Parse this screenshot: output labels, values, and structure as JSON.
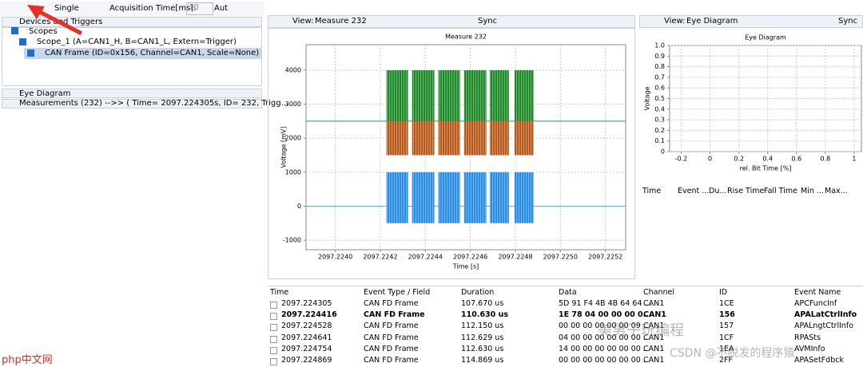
{
  "toolbar": {
    "mode": "Single",
    "acq_label": "Acquisition Time[ms]:",
    "acq_value": "10",
    "auto": "Aut"
  },
  "tree": {
    "header": "Devices and Triggers",
    "scopes": "Scopes",
    "scope": "Scope_1 (A=CAN1_H, B=CAN1_L, Extern=Trigger)",
    "frame": "CAN Frame (ID=0x156, Channel=CAN1, Scale=None)"
  },
  "sections": {
    "eye": "Eye Diagram",
    "measurements": "Measurements (232)  -->> ( Time= 2097.224305s, ID= 232, Trigg..."
  },
  "middle_view": {
    "view_label": "View:",
    "view": "Measure 232",
    "sync": "Sync"
  },
  "right_view": {
    "view_label": "View:",
    "view": "Eye Diagram",
    "sync": "Sync"
  },
  "chart_data": [
    {
      "type": "scope",
      "title": "Measure 232",
      "x_label": "Time [s]",
      "y_label": "Voltage [mV]",
      "xlim": [
        2097.22387,
        2097.22529
      ],
      "ylim": [
        -1280,
        4750
      ],
      "xticks": [
        {
          "value": 2097.224,
          "label": "2097.2240"
        },
        {
          "value": 2097.2242,
          "label": "2097.2242"
        },
        {
          "value": 2097.2244,
          "label": "2097.2244"
        },
        {
          "value": 2097.2246,
          "label": "2097.2246"
        },
        {
          "value": 2097.2248,
          "label": "2097.2248"
        },
        {
          "value": 2097.225,
          "label": "2097.2250"
        },
        {
          "value": 2097.2252,
          "label": "2097.2252"
        }
      ],
      "yticks": [
        -1000,
        0,
        1000,
        2000,
        3000,
        4000
      ],
      "grid": true,
      "bursts": [
        [
          2097.224227,
          2097.224323
        ],
        [
          2097.224341,
          2097.22444
        ],
        [
          2097.224458,
          2097.224554
        ],
        [
          2097.224572,
          2097.224671
        ],
        [
          2097.224686,
          2097.224771
        ],
        [
          2097.224796,
          2097.224881
        ]
      ],
      "bands": [
        {
          "color": "#1f8a2a",
          "range": [
            2500,
            4000
          ]
        },
        {
          "color": "#b85a1c",
          "range": [
            1500,
            2500
          ]
        },
        {
          "color": "#2a8ee8",
          "range": [
            -500,
            1000
          ]
        }
      ],
      "levels": [
        {
          "value": 2500,
          "color": "#2e9a3a"
        },
        {
          "value": 0,
          "color": "#4fb4d8"
        }
      ]
    },
    {
      "type": "eye",
      "title": "Eye Diagram",
      "x_label": "rel. Bit Time [%]",
      "y_label": "Voltage",
      "xlim": [
        -0.28,
        1.05
      ],
      "ylim": [
        0,
        1
      ],
      "xticks": [
        -0.2,
        0,
        0.2,
        0.4,
        0.6,
        0.8,
        1.0
      ],
      "yticks": [
        0,
        0.1,
        0.2,
        0.3,
        0.4,
        0.5,
        0.6,
        0.7,
        0.8,
        0.9,
        {
          "value": 1,
          "label": "1.0"
        }
      ],
      "grid": true
    }
  ],
  "eye_table": {
    "columns": [
      "Time",
      "Event ...",
      "Du...",
      "Rise Time",
      "Fall Time",
      "Min ...",
      "Max..."
    ]
  },
  "table": {
    "columns": [
      "Time",
      "Event Type / Field",
      "Duration",
      "Data",
      "Channel",
      "ID",
      "Event Name"
    ],
    "rows": [
      [
        "2097.224305",
        "CAN FD Frame",
        "107.670 us",
        "5D 91 F4 4B 4B 64 64 ...",
        "CAN1",
        "1CE",
        "APCFuncInf"
      ],
      [
        "2097.224416",
        "CAN FD Frame",
        "110.630 us",
        "1E 78 04 00 00 00 0...",
        "CAN1",
        "156",
        "APALatCtrlInfo"
      ],
      [
        "2097.224528",
        "CAN FD Frame",
        "112.150 us",
        "00 00 00 00 00 00 09 ...",
        "CAN1",
        "157",
        "APALngtCtrlInfo"
      ],
      [
        "2097.224641",
        "CAN FD Frame",
        "112.629 us",
        "04 00 00 00 00 00 00 ...",
        "CAN1",
        "1CF",
        "RPASts"
      ],
      [
        "2097.224754",
        "CAN FD Frame",
        "112.630 us",
        "14 00 00 00 00 00 00 ...",
        "CAN1",
        "1EA",
        "AVMInfo"
      ],
      [
        "2097.224869",
        "CAN FD Frame",
        "114.869 us",
        "00 00 00 00 00 00 00 ...",
        "CAN1",
        "2FF",
        "APASetFdbck"
      ]
    ]
  },
  "watermarks": {
    "channel": "美男子玩编程",
    "csdn": "CSDN @不脱发的程序猿",
    "site": "php中文网"
  }
}
